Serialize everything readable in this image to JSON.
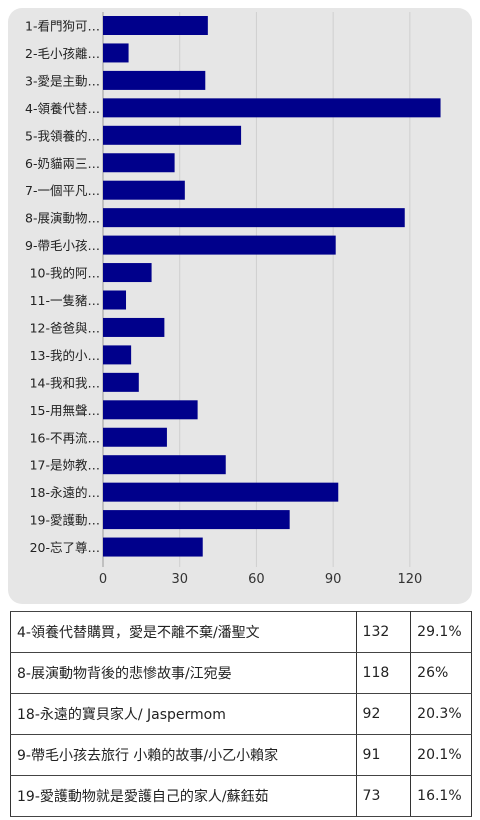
{
  "chart_data": {
    "type": "bar",
    "orientation": "horizontal",
    "categories": [
      "1-看門狗可…",
      "2-毛小孩離…",
      "3-愛是主動…",
      "4-領養代替…",
      "5-我領養的…",
      "6-奶貓兩三…",
      "7-一個平凡…",
      "8-展演動物…",
      "9-帶毛小孩…",
      "10-我的阿…",
      "11-一隻豬…",
      "12-爸爸與…",
      "13-我的小…",
      "14-我和我…",
      "15-用無聲…",
      "16-不再流…",
      "17-是妳教…",
      "18-永遠的…",
      "19-愛護動…",
      "20-忘了尊…"
    ],
    "values": [
      41,
      10,
      40,
      132,
      54,
      28,
      32,
      118,
      91,
      19,
      9,
      24,
      11,
      14,
      37,
      25,
      48,
      92,
      73,
      39
    ],
    "xlim": [
      0,
      140
    ],
    "xticks": [
      "0",
      "30",
      "60",
      "90",
      "120"
    ],
    "grid": true,
    "bar_color": "#00008b"
  },
  "table": {
    "rows": [
      {
        "title": "4-領養代替購買，愛是不離不棄/潘聖文",
        "count": "132",
        "percent": "29.1%"
      },
      {
        "title": "8-展演動物背後的悲慘故事/江宛晏",
        "count": "118",
        "percent": "26%"
      },
      {
        "title": "18-永遠的寶貝家人/ Jaspermom",
        "count": "92",
        "percent": "20.3%"
      },
      {
        "title": "9-帶毛小孩去旅行 小賴的故事/小乙小賴家",
        "count": "91",
        "percent": "20.1%"
      },
      {
        "title": "19-愛護動物就是愛護自己的家人/蘇鈺茹",
        "count": "73",
        "percent": "16.1%"
      }
    ]
  }
}
